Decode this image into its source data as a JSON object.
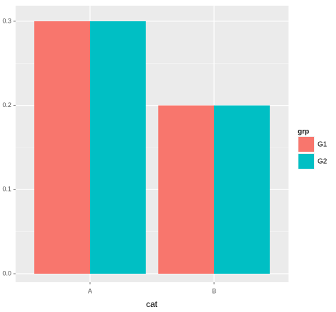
{
  "chart_data": {
    "type": "bar",
    "categories": [
      "A",
      "B"
    ],
    "series": [
      {
        "name": "G1",
        "color": "#F8766D",
        "values": [
          0.3,
          0.2
        ]
      },
      {
        "name": "G2",
        "color": "#00BFC4",
        "values": [
          0.3,
          0.2
        ]
      }
    ],
    "x_label": "cat",
    "legend_title": "grp",
    "ylim": [
      -0.0101,
      0.3185
    ],
    "yticks": [
      {
        "value": 0,
        "label": "0.0"
      },
      0.1,
      0.2,
      0.3
    ],
    "grid": true,
    "legend_position": "right"
  }
}
